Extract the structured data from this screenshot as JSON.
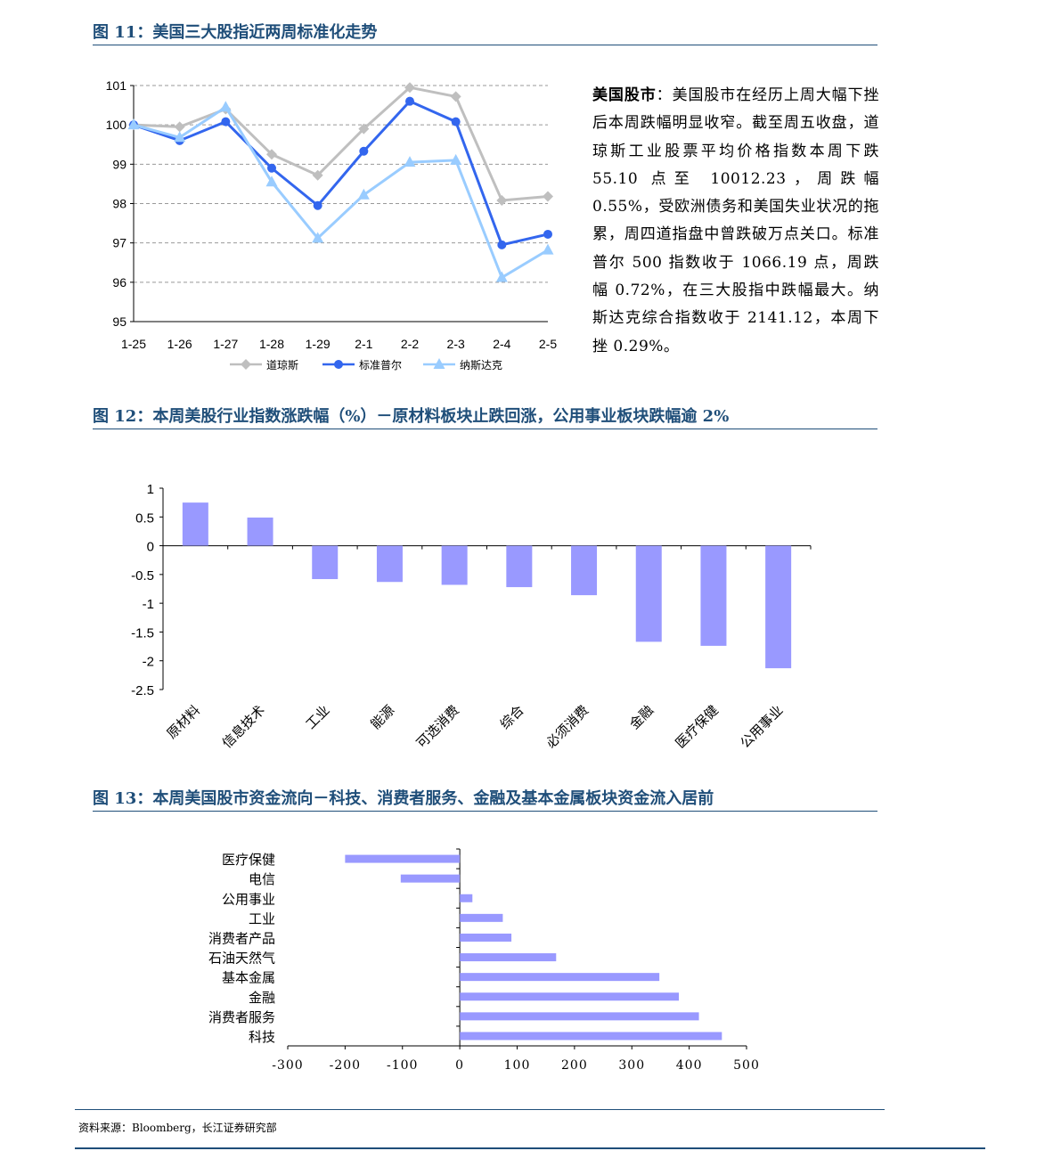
{
  "fig11": {
    "title": "图 11：美国三大股指近两周标准化走势",
    "comment_label": "美国股市",
    "comment_body": "：美国股市在经历上周大幅下挫后本周跌幅明显收窄。截至周五收盘，道琼斯工业股票平均价格指数本周下跌 55.10 点至 10012.23，周跌幅 0.55%，受欧洲债务和美国失业状况的拖累，周四道指盘中曾跌破万点关口。标准普尔 500 指数收于 1066.19 点，周跌幅 0.72%，在三大股指中跌幅最大。纳斯达克综合指数收于 2141.12，本周下挫 0.29%。"
  },
  "fig12": {
    "title": "图 12：本周美股行业指数涨跌幅（%）－原材料板块止跌回涨，公用事业板块跌幅逾 2%"
  },
  "fig13": {
    "title": "图 13：本周美国股市资金流向－科技、消费者服务、金融及基本金属板块资金流入居前"
  },
  "source": "资料来源：Bloomberg，长江证券研究部",
  "chart_data": [
    {
      "type": "line",
      "x": [
        "1-25",
        "1-26",
        "1-27",
        "1-28",
        "1-29",
        "2-1",
        "2-2",
        "2-3",
        "2-4",
        "2-5"
      ],
      "ylim": [
        95,
        101
      ],
      "yticks": [
        95,
        96,
        97,
        98,
        99,
        100,
        101
      ],
      "grid": true,
      "legend": "bottom",
      "series": [
        {
          "name": "道琼斯",
          "color": "#bfbfbf",
          "marker": "diamond",
          "values": [
            100,
            99.95,
            100.4,
            99.25,
            98.72,
            99.9,
            100.95,
            100.72,
            98.08,
            98.18
          ]
        },
        {
          "name": "标准普尔",
          "color": "#3366ee",
          "marker": "circle",
          "values": [
            100,
            99.6,
            100.08,
            98.9,
            97.95,
            99.33,
            100.6,
            100.08,
            96.95,
            97.22
          ]
        },
        {
          "name": "纳斯达克",
          "color": "#99ccff",
          "marker": "triangle",
          "values": [
            100,
            99.68,
            100.45,
            98.55,
            97.12,
            98.22,
            99.05,
            99.1,
            96.12,
            96.82
          ]
        }
      ]
    },
    {
      "type": "bar",
      "categories": [
        "原材料",
        "信息技术",
        "工业",
        "能源",
        "可选消费",
        "综合",
        "必须消费",
        "金融",
        "医疗保健",
        "公用事业"
      ],
      "values": [
        0.75,
        0.49,
        -0.58,
        -0.63,
        -0.68,
        -0.72,
        -0.86,
        -1.67,
        -1.74,
        -2.13
      ],
      "ylim": [
        -2.5,
        1
      ],
      "yticks": [
        1,
        0.5,
        0,
        -0.5,
        -1,
        -1.5,
        -2,
        -2.5
      ],
      "color": "#9999ff"
    },
    {
      "type": "bar",
      "orientation": "horizontal",
      "categories": [
        "医疗保健",
        "电信",
        "公用事业",
        "工业",
        "消费者产品",
        "石油天然气",
        "基本金属",
        "金融",
        "消费者服务",
        "科技"
      ],
      "values": [
        -200,
        -103,
        22,
        75,
        90,
        168,
        348,
        382,
        417,
        457
      ],
      "xlim": [
        -300,
        500
      ],
      "xticks": [
        -300,
        -200,
        -100,
        0,
        100,
        200,
        300,
        400,
        500
      ],
      "color": "#9999ff"
    }
  ]
}
